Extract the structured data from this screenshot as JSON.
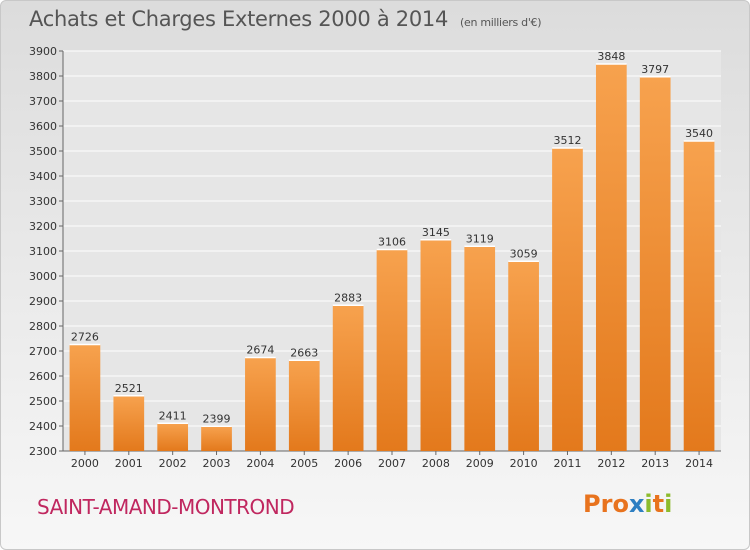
{
  "chart_data": {
    "type": "bar",
    "title": "Achats et Charges Externes 2000 à 2014",
    "subtitle": "(en milliers d'€)",
    "categories": [
      "2000",
      "2001",
      "2002",
      "2003",
      "2004",
      "2005",
      "2006",
      "2007",
      "2008",
      "2009",
      "2010",
      "2011",
      "2012",
      "2013",
      "2014"
    ],
    "values": [
      2726,
      2521,
      2411,
      2399,
      2674,
      2663,
      2883,
      3106,
      3145,
      3119,
      3059,
      3512,
      3848,
      3797,
      3540
    ],
    "xlabel": "",
    "ylabel": "",
    "ylim": [
      2300,
      3900
    ],
    "yticks": [
      2300,
      2400,
      2500,
      2600,
      2700,
      2800,
      2900,
      3000,
      3100,
      3200,
      3300,
      3400,
      3500,
      3600,
      3700,
      3800,
      3900
    ],
    "grid": true,
    "bar_color": "#f28c28"
  },
  "footer": {
    "commune": "SAINT-AMAND-MONTROND",
    "brand_letters": [
      {
        "ch": "P",
        "color": "#e8731e"
      },
      {
        "ch": "r",
        "color": "#e8731e"
      },
      {
        "ch": "o",
        "color": "#e8731e"
      },
      {
        "ch": "x",
        "color": "#2e7fc2"
      },
      {
        "ch": "i",
        "color": "#8dbb2d"
      },
      {
        "ch": "t",
        "color": "#e8731e"
      },
      {
        "ch": "i",
        "color": "#8dbb2d"
      }
    ]
  }
}
